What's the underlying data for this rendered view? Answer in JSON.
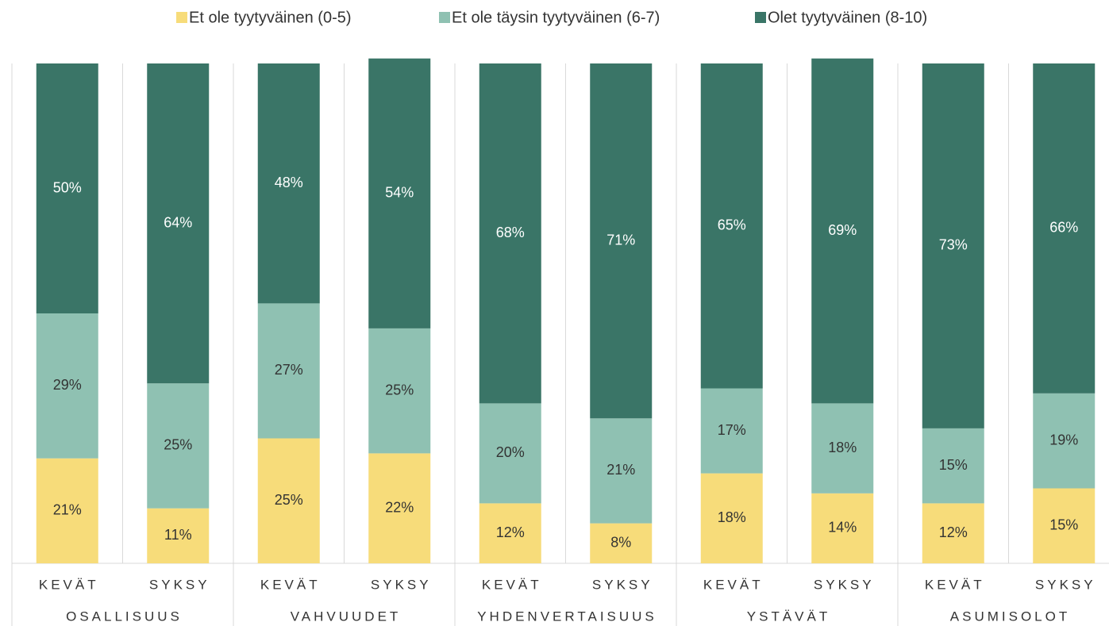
{
  "chart_data": {
    "type": "stacked_bar",
    "categories": [
      "KEVÄT",
      "SYKSY",
      "KEVÄT",
      "SYKSY",
      "KEVÄT",
      "SYKSY",
      "KEVÄT",
      "SYKSY",
      "KEVÄT",
      "SYKSY"
    ],
    "groups": [
      "OSALLISUUS",
      "VAHVUUDET",
      "YHDENVERTAISUUS",
      "YSTÄVÄT",
      "ASUMISOLOT"
    ],
    "series": [
      {
        "name": "Et ole tyytyväinen (0-5)",
        "color": "#f7dc7a",
        "values": [
          21,
          11,
          25,
          22,
          12,
          8,
          18,
          14,
          12,
          15
        ],
        "value_labels": [
          "21%",
          "11%",
          "25%",
          "22%",
          "12%",
          "8%",
          "18%",
          "14%",
          "12%",
          "15%"
        ]
      },
      {
        "name": "Et ole täysin tyytyväinen (6-7)",
        "color": "#8fc1b2",
        "values": [
          29,
          25,
          27,
          25,
          20,
          21,
          17,
          18,
          15,
          19
        ],
        "value_labels": [
          "29%",
          "25%",
          "27%",
          "25%",
          "20%",
          "21%",
          "17%",
          "18%",
          "15%",
          "19%"
        ]
      },
      {
        "name": "Olet tyytyväinen (8-10)",
        "color": "#3a7567",
        "values": [
          50,
          64,
          48,
          54,
          68,
          71,
          65,
          69,
          73,
          66
        ],
        "value_labels": [
          "50%",
          "64%",
          "48%",
          "54%",
          "68%",
          "71%",
          "65%",
          "69%",
          "73%",
          "66%"
        ]
      }
    ],
    "ylim": [
      0,
      100
    ],
    "legend": "top"
  }
}
